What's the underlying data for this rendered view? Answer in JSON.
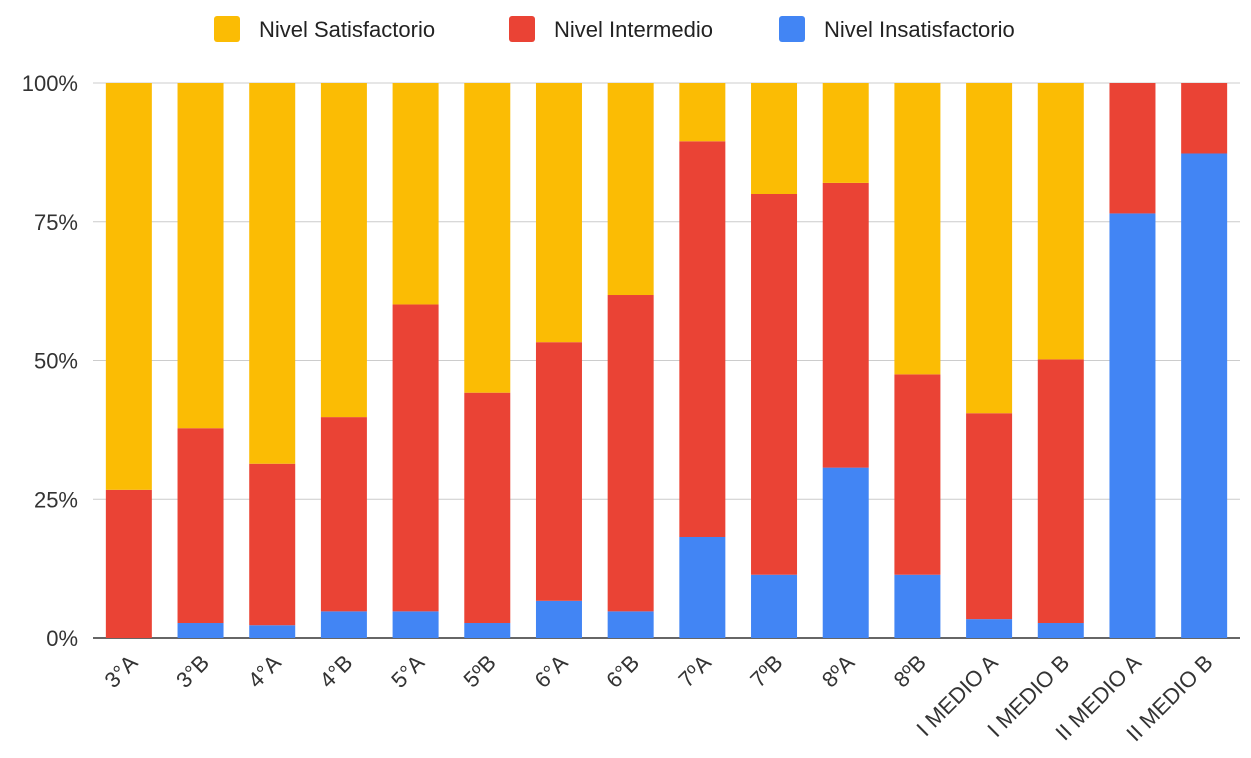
{
  "chart_data": {
    "type": "bar",
    "stacked": true,
    "normalized": true,
    "categories": [
      "3°A",
      "3°B",
      "4°A",
      "4°B",
      "5°A",
      "5ºB",
      "6°A",
      "6°B",
      "7ºA",
      "7ºB",
      "8ºA",
      "8ºB",
      "I MEDIO A",
      "I MEDIO B",
      "II MEDIO A",
      "II MEDIO B"
    ],
    "series": [
      {
        "name": "Nivel Insatisfactorio",
        "color": "#4285F4",
        "values": [
          0,
          2.7,
          2.3,
          4.8,
          4.8,
          2.7,
          6.7,
          4.8,
          18.2,
          11.4,
          30.7,
          11.4,
          3.4,
          2.7,
          76.5,
          87.3
        ]
      },
      {
        "name": "Nivel Intermedio",
        "color": "#EA4335",
        "values": [
          26.7,
          35.1,
          29.1,
          35.0,
          55.3,
          41.5,
          46.6,
          57.0,
          71.3,
          68.6,
          51.3,
          36.1,
          37.1,
          47.5,
          23.5,
          12.7
        ]
      },
      {
        "name": "Nivel Satisfactorio",
        "color": "#FBBC04",
        "values": [
          73.3,
          62.2,
          68.6,
          60.2,
          39.9,
          55.8,
          46.7,
          38.2,
          10.5,
          20.0,
          18.0,
          52.5,
          59.5,
          49.8,
          0,
          0
        ]
      }
    ],
    "legend_order": [
      "Nivel Satisfactorio",
      "Nivel Intermedio",
      "Nivel Insatisfactorio"
    ],
    "legend_position": "top",
    "y_ticks": [
      "0%",
      "25%",
      "50%",
      "75%",
      "100%"
    ],
    "ylim": [
      0,
      100
    ],
    "grid": true
  }
}
